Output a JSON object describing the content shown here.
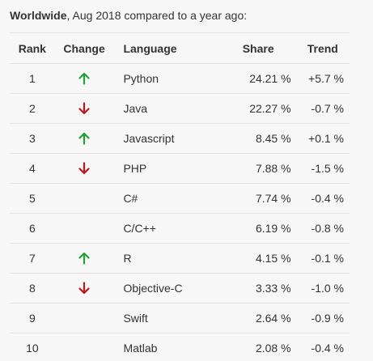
{
  "caption": {
    "bold": "Worldwide",
    "rest": ", Aug 2018 compared to a year ago:"
  },
  "headers": {
    "rank": "Rank",
    "change": "Change",
    "language": "Language",
    "share": "Share",
    "trend": "Trend"
  },
  "colors": {
    "up": "#22a03a",
    "down": "#c0161b"
  },
  "rows": [
    {
      "rank": "1",
      "change": "up",
      "language": "Python",
      "share": "24.21 %",
      "trend": "+5.7 %"
    },
    {
      "rank": "2",
      "change": "down",
      "language": "Java",
      "share": "22.27 %",
      "trend": "-0.7 %"
    },
    {
      "rank": "3",
      "change": "up",
      "language": "Javascript",
      "share": "8.45 %",
      "trend": "+0.1 %"
    },
    {
      "rank": "4",
      "change": "down",
      "language": "PHP",
      "share": "7.88 %",
      "trend": "-1.5 %"
    },
    {
      "rank": "5",
      "change": "none",
      "language": "C#",
      "share": "7.74 %",
      "trend": "-0.4 %"
    },
    {
      "rank": "6",
      "change": "none",
      "language": "C/C++",
      "share": "6.19 %",
      "trend": "-0.8 %"
    },
    {
      "rank": "7",
      "change": "up",
      "language": "R",
      "share": "4.15 %",
      "trend": "-0.1 %"
    },
    {
      "rank": "8",
      "change": "down",
      "language": "Objective-C",
      "share": "3.33 %",
      "trend": "-1.0 %"
    },
    {
      "rank": "9",
      "change": "none",
      "language": "Swift",
      "share": "2.64 %",
      "trend": "-0.9 %"
    },
    {
      "rank": "10",
      "change": "none",
      "language": "Matlab",
      "share": "2.08 %",
      "trend": "-0.4 %"
    }
  ]
}
